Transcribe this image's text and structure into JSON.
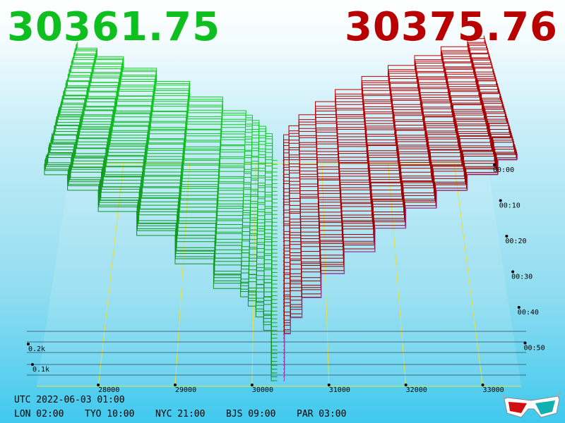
{
  "header": {
    "bid_price": "30361.75",
    "ask_price": "30375.76",
    "bid_color": "#0fbf20",
    "ask_color": "#b90000"
  },
  "footer": {
    "utc": "UTC 2022-06-03 01:00",
    "zones": [
      "LON 02:00",
      "TYO 10:00",
      "NYC 21:00",
      "BJS 09:00",
      "PAR 03:00"
    ]
  },
  "icons": {
    "glasses": "3d-glasses-icon"
  },
  "chart_data": {
    "type": "area",
    "title": "",
    "xlabel": "",
    "ylabel": "",
    "x_ticks": [
      28000,
      29000,
      30000,
      31000,
      32000,
      33000
    ],
    "x_tick_labels": [
      "28000",
      "29000",
      "30000",
      "31000",
      "32000",
      "33000"
    ],
    "xlim": [
      27200,
      33500
    ],
    "depth_ticks": [
      "0.1k",
      "0.2k"
    ],
    "depth_values": [
      0.1,
      0.2
    ],
    "time_ticks": [
      "00:00",
      "00:10",
      "00:20",
      "00:30",
      "00:40",
      "00:50"
    ],
    "mid_price": 30368,
    "bid_series_color": "#10b020",
    "ask_series_color": "#a00000",
    "grid": true
  }
}
